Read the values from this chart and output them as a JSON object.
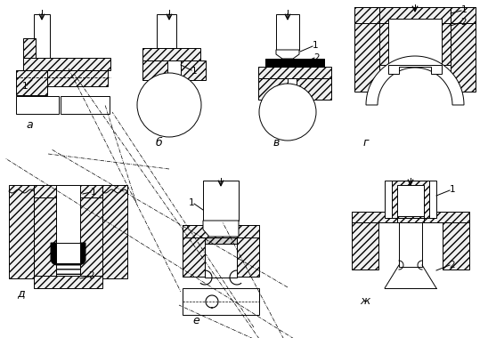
{
  "background_color": "#ffffff",
  "line_color": "#000000",
  "labels": {
    "a": "а",
    "b": "б",
    "v": "в",
    "g": "г",
    "d": "д",
    "e": "е",
    "zh": "ж"
  },
  "figsize": [
    5.48,
    3.8
  ],
  "dpi": 100
}
